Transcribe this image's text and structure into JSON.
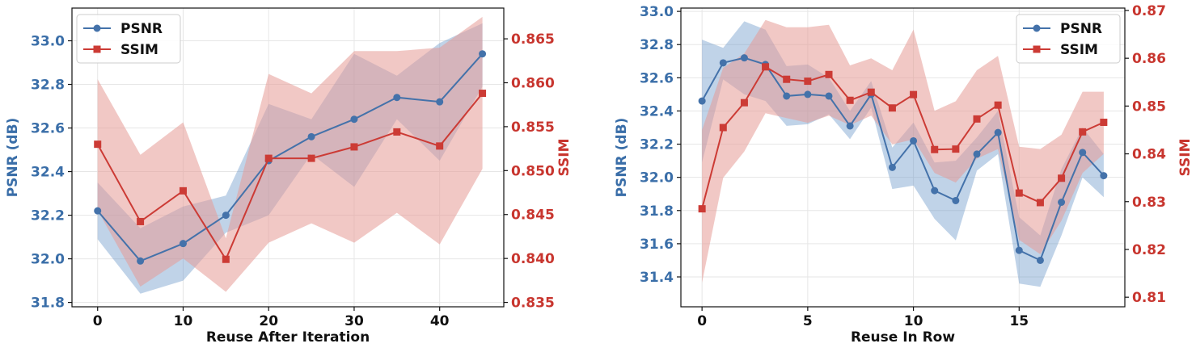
{
  "colors": {
    "psnr": "#4472aa",
    "ssim": "#cc3b35",
    "psnr_band": "#6a96c8",
    "ssim_band": "#e59a96",
    "grid": "#e6e6e6"
  },
  "chart_data": [
    {
      "type": "line",
      "xlabel": "Reuse After Iteration",
      "ylabel_left": "PSNR (dB)",
      "ylabel_right": "SSIM",
      "x": [
        0,
        5,
        10,
        15,
        20,
        25,
        30,
        35,
        40,
        45
      ],
      "xlim": [
        -3,
        47.5
      ],
      "xticks": [
        0,
        10,
        20,
        30,
        40
      ],
      "ylim_left": [
        31.78,
        33.15
      ],
      "yticks_left": [
        31.8,
        32.0,
        32.2,
        32.4,
        32.6,
        32.8,
        33.0
      ],
      "ylim_right": [
        0.8345,
        0.8685
      ],
      "yticks_right": [
        0.835,
        0.84,
        0.845,
        0.85,
        0.855,
        0.86,
        0.865
      ],
      "legend_position": "upper-left",
      "grid": true,
      "series": [
        {
          "name": "PSNR",
          "axis": "left",
          "marker": "circle",
          "values": [
            32.22,
            31.99,
            32.07,
            32.2,
            32.45,
            32.56,
            32.64,
            32.74,
            32.72,
            32.94
          ],
          "upper": [
            32.35,
            32.14,
            32.24,
            32.29,
            32.71,
            32.64,
            32.94,
            32.84,
            32.99,
            33.08
          ],
          "lower": [
            32.09,
            31.84,
            31.9,
            32.12,
            32.2,
            32.48,
            32.33,
            32.64,
            32.45,
            32.79
          ]
        },
        {
          "name": "SSIM",
          "axis": "right",
          "marker": "square",
          "values": [
            0.853,
            0.8442,
            0.8477,
            0.8399,
            0.8514,
            0.8514,
            0.8527,
            0.8544,
            0.8528,
            0.8588
          ],
          "upper": [
            0.8604,
            0.8518,
            0.8555,
            0.8423,
            0.861,
            0.8588,
            0.8636,
            0.8636,
            0.864,
            0.8675
          ],
          "lower": [
            0.8455,
            0.8368,
            0.84,
            0.8362,
            0.8418,
            0.844,
            0.8418,
            0.8452,
            0.8416,
            0.8502
          ]
        }
      ]
    },
    {
      "type": "line",
      "xlabel": "Reuse In Row",
      "ylabel_left": "PSNR (dB)",
      "ylabel_right": "SSIM",
      "x": [
        0,
        1,
        2,
        3,
        4,
        5,
        6,
        7,
        8,
        9,
        10,
        11,
        12,
        13,
        14,
        15,
        16,
        17,
        18,
        19
      ],
      "xlim": [
        -1,
        20
      ],
      "xticks": [
        0,
        5,
        10,
        15
      ],
      "ylim_left": [
        31.22,
        33.02
      ],
      "yticks_left": [
        31.4,
        31.6,
        31.8,
        32.0,
        32.2,
        32.4,
        32.6,
        32.8,
        33.0
      ],
      "ylim_right": [
        0.808,
        0.8705
      ],
      "yticks_right": [
        0.81,
        0.82,
        0.83,
        0.84,
        0.85,
        0.86,
        0.87
      ],
      "legend_position": "upper-right",
      "grid": true,
      "series": [
        {
          "name": "PSNR",
          "axis": "left",
          "marker": "circle",
          "values": [
            32.46,
            32.69,
            32.72,
            32.68,
            32.49,
            32.5,
            32.49,
            32.31,
            32.5,
            32.06,
            32.22,
            31.92,
            31.86,
            32.14,
            32.27,
            31.56,
            31.5,
            31.85,
            32.15,
            32.01
          ],
          "upper": [
            32.83,
            32.78,
            32.94,
            32.89,
            32.67,
            32.68,
            32.6,
            32.4,
            32.58,
            32.18,
            32.33,
            32.09,
            32.1,
            32.24,
            32.4,
            31.76,
            31.65,
            32.05,
            32.3,
            32.14
          ],
          "lower": [
            32.09,
            32.59,
            32.5,
            32.46,
            32.31,
            32.32,
            32.38,
            32.23,
            32.42,
            31.93,
            31.95,
            31.75,
            31.62,
            32.04,
            32.14,
            31.36,
            31.34,
            31.65,
            32.0,
            31.88
          ]
        },
        {
          "name": "SSIM",
          "axis": "right",
          "marker": "square",
          "values": [
            0.8285,
            0.8455,
            0.8507,
            0.8582,
            0.8556,
            0.8552,
            0.8566,
            0.8512,
            0.8529,
            0.8496,
            0.8524,
            0.8409,
            0.841,
            0.8473,
            0.8502,
            0.8318,
            0.8298,
            0.8349,
            0.8446,
            0.8466
          ],
          "upper": [
            0.845,
            0.858,
            0.861,
            0.868,
            0.8665,
            0.8665,
            0.867,
            0.8585,
            0.86,
            0.8575,
            0.866,
            0.849,
            0.851,
            0.8575,
            0.8605,
            0.8415,
            0.841,
            0.844,
            0.853,
            0.853
          ],
          "lower": [
            0.813,
            0.835,
            0.8405,
            0.8485,
            0.8475,
            0.8465,
            0.848,
            0.846,
            0.848,
            0.842,
            0.843,
            0.836,
            0.834,
            0.839,
            0.841,
            0.822,
            0.819,
            0.826,
            0.836,
            0.84
          ]
        }
      ]
    }
  ]
}
